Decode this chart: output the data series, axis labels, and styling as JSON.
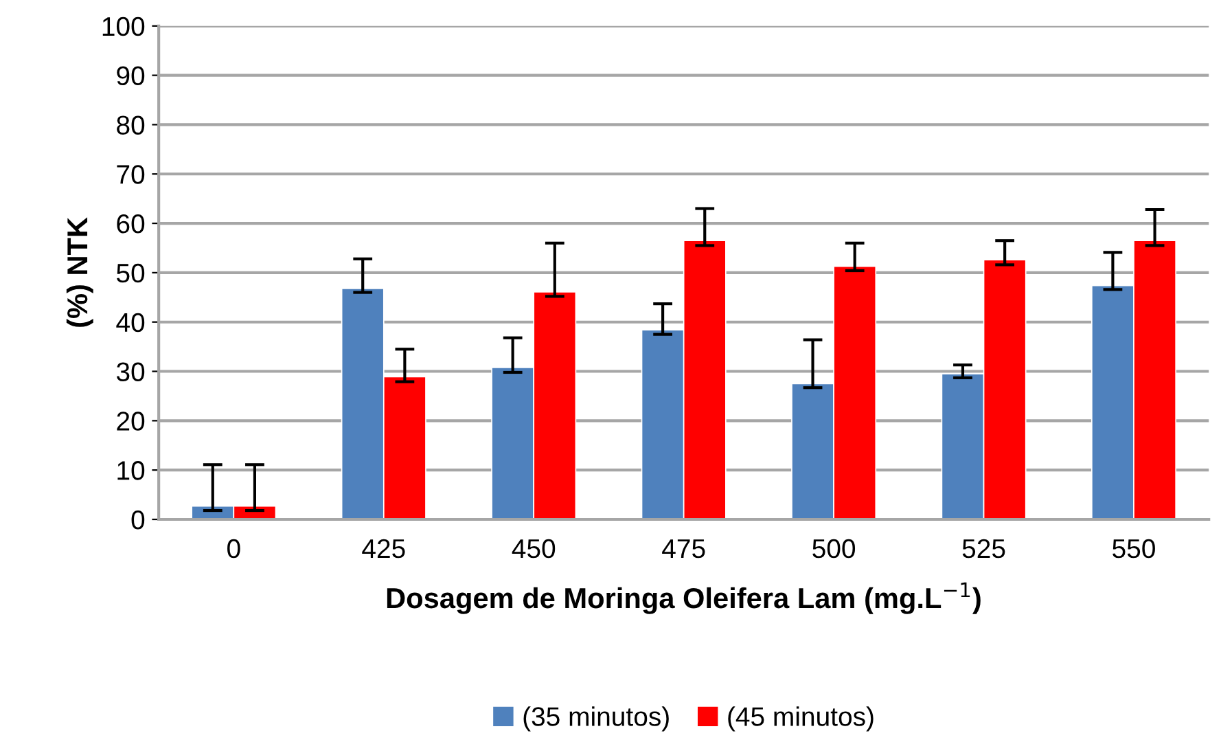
{
  "chart_data": {
    "type": "bar",
    "xlabel": "Dosagem de Moringa Oleifera Lam (mg.L$^{−1}$)",
    "ylabel": "(%) NTK",
    "categories": [
      "0",
      "425",
      "450",
      "475",
      "500",
      "525",
      "550"
    ],
    "series": [
      {
        "name": "(35 minutos)",
        "color": "#4f81bd",
        "values": [
          2.7,
          46.8,
          30.8,
          38.4,
          27.5,
          29.5,
          47.4
        ],
        "errors": [
          [
            1.8,
            11.1
          ],
          [
            46.0,
            52.8
          ],
          [
            29.8,
            36.8
          ],
          [
            37.5,
            43.7
          ],
          [
            26.7,
            36.4
          ],
          [
            28.7,
            31.3
          ],
          [
            46.6,
            54.1
          ]
        ]
      },
      {
        "name": "(45 minutos)",
        "color": "#ff0000",
        "values": [
          2.7,
          28.9,
          46.1,
          56.5,
          51.3,
          52.6,
          56.5
        ],
        "errors": [
          [
            1.8,
            11.1
          ],
          [
            27.9,
            34.5
          ],
          [
            45.2,
            56.0
          ],
          [
            55.5,
            63.0
          ],
          [
            50.4,
            56.0
          ],
          [
            51.6,
            56.5
          ],
          [
            55.5,
            62.8
          ]
        ]
      }
    ],
    "ylim": [
      0,
      100
    ],
    "yticks": [
      0,
      10,
      20,
      30,
      40,
      50,
      60,
      70,
      80,
      90,
      100
    ],
    "grid": "y",
    "legend": "bottom"
  }
}
